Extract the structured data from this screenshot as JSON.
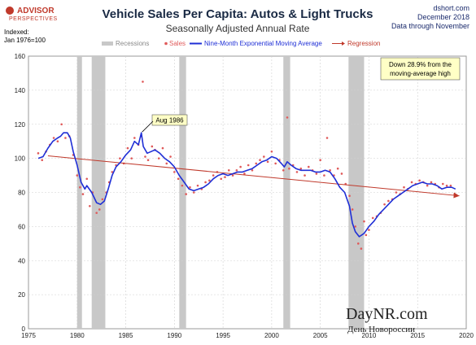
{
  "header": {
    "logo_line1": "ADVISOR",
    "logo_line2": "PERSPECTIVES",
    "source": "dshort.com",
    "date": "December 2018",
    "note": "Data through November",
    "indexed_line1": "Indexed:",
    "indexed_line2": "Jan 1976=100"
  },
  "watermark": {
    "main": "DayNR.com",
    "sub": "День Новороссии"
  },
  "colors": {
    "sales": "#e05a5a",
    "ma": "#1f2fd6",
    "regression": "#c0392b",
    "recession": "#c8c8c8",
    "grid": "#d0d0d0",
    "annotation_bg": "#ffffc6"
  },
  "chart_data": {
    "type": "line",
    "title": "Vehicle Sales Per Capita: Autos & Light Trucks",
    "subtitle": "Seasonally Adjusted Annual Rate",
    "xlim": [
      1975,
      2020
    ],
    "ylim": [
      0,
      160
    ],
    "xticks": [
      1975,
      1980,
      1985,
      1990,
      1995,
      2000,
      2005,
      2010,
      2015,
      2020
    ],
    "yticks": [
      0,
      20,
      40,
      60,
      80,
      100,
      120,
      140,
      160
    ],
    "grid": true,
    "legend_position": "top",
    "legend": [
      {
        "label": "Recessions",
        "kind": "recession"
      },
      {
        "label": "Sales",
        "kind": "sales"
      },
      {
        "label": "Nine-Month Exponential Moving Average",
        "kind": "ma"
      },
      {
        "label": "Regression",
        "kind": "regression"
      }
    ],
    "recessions": [
      [
        1980.0,
        1980.5
      ],
      [
        1981.5,
        1982.9
      ],
      [
        1990.5,
        1991.2
      ],
      [
        2001.2,
        2001.9
      ],
      [
        2007.9,
        2009.5
      ]
    ],
    "moving_average": {
      "x": [
        1976.0,
        1976.5,
        1977.0,
        1977.5,
        1978.0,
        1978.3,
        1978.6,
        1979.0,
        1979.3,
        1979.6,
        1980.0,
        1980.4,
        1980.8,
        1981.0,
        1981.5,
        1982.0,
        1982.4,
        1982.8,
        1983.2,
        1983.6,
        1984.0,
        1984.5,
        1985.0,
        1985.5,
        1985.9,
        1986.3,
        1986.6,
        1986.8,
        1987.2,
        1987.6,
        1988.0,
        1988.5,
        1989.0,
        1989.5,
        1990.0,
        1990.5,
        1991.0,
        1991.5,
        1992.0,
        1992.5,
        1993.0,
        1993.5,
        1994.0,
        1994.5,
        1995.0,
        1995.5,
        1996.0,
        1996.5,
        1997.0,
        1997.5,
        1998.0,
        1998.5,
        1999.0,
        1999.5,
        2000.0,
        2000.5,
        2001.0,
        2001.3,
        2001.6,
        2002.0,
        2002.5,
        2003.0,
        2003.5,
        2004.0,
        2004.5,
        2005.0,
        2005.5,
        2006.0,
        2006.5,
        2007.0,
        2007.5,
        2008.0,
        2008.3,
        2008.6,
        2009.0,
        2009.5,
        2010.0,
        2010.5,
        2011.0,
        2011.5,
        2012.0,
        2012.5,
        2013.0,
        2013.5,
        2014.0,
        2014.5,
        2015.0,
        2015.5,
        2016.0,
        2016.5,
        2017.0,
        2017.5,
        2018.0,
        2018.5,
        2018.9
      ],
      "y": [
        100,
        101,
        106,
        110,
        112,
        113,
        115,
        115,
        112,
        104,
        96,
        86,
        82,
        84,
        80,
        74,
        73,
        75,
        82,
        90,
        95,
        98,
        102,
        105,
        110,
        108,
        115,
        107,
        103,
        104,
        105,
        103,
        100,
        98,
        95,
        90,
        86,
        82,
        81,
        82,
        83,
        85,
        88,
        90,
        91,
        90,
        91,
        92,
        92,
        93,
        94,
        96,
        98,
        99,
        101,
        100,
        97,
        95,
        98,
        96,
        94,
        93,
        93,
        93,
        92,
        92,
        93,
        92,
        88,
        83,
        80,
        72,
        62,
        57,
        54,
        56,
        60,
        63,
        67,
        70,
        73,
        76,
        78,
        80,
        82,
        84,
        85,
        86,
        85,
        85,
        84,
        82,
        83,
        83,
        82
      ]
    },
    "sales": {
      "x": [
        1976.0,
        1976.4,
        1976.8,
        1977.2,
        1977.6,
        1978.0,
        1978.4,
        1978.8,
        1979.2,
        1979.6,
        1980.0,
        1980.3,
        1980.6,
        1981.0,
        1981.3,
        1981.6,
        1982.0,
        1982.3,
        1982.6,
        1983.0,
        1983.3,
        1983.6,
        1984.0,
        1984.4,
        1984.8,
        1985.2,
        1985.6,
        1985.9,
        1986.3,
        1986.6,
        1986.75,
        1987.0,
        1987.3,
        1987.7,
        1988.0,
        1988.4,
        1988.8,
        1989.2,
        1989.6,
        1990.0,
        1990.4,
        1990.8,
        1991.2,
        1991.6,
        1992.0,
        1992.4,
        1992.8,
        1993.2,
        1993.6,
        1994.0,
        1994.4,
        1994.8,
        1995.2,
        1995.6,
        1996.0,
        1996.4,
        1996.8,
        1997.2,
        1997.6,
        1998.0,
        1998.4,
        1998.8,
        1999.2,
        1999.6,
        2000.0,
        2000.4,
        2000.8,
        2001.2,
        2001.6,
        2001.8,
        2002.2,
        2002.6,
        2003.0,
        2003.4,
        2003.8,
        2004.2,
        2004.6,
        2005.0,
        2005.4,
        2005.7,
        2006.0,
        2006.4,
        2006.8,
        2007.2,
        2007.6,
        2008.0,
        2008.3,
        2008.6,
        2008.9,
        2009.2,
        2009.5,
        2009.7,
        2010.0,
        2010.4,
        2010.8,
        2011.2,
        2011.6,
        2012.0,
        2012.4,
        2012.8,
        2013.2,
        2013.6,
        2014.0,
        2014.4,
        2014.8,
        2015.2,
        2015.6,
        2016.0,
        2016.4,
        2016.8,
        2017.2,
        2017.6,
        2018.0,
        2018.4,
        2018.8
      ],
      "y": [
        103,
        99,
        104,
        108,
        112,
        110,
        120,
        112,
        113,
        102,
        90,
        83,
        79,
        88,
        72,
        80,
        68,
        70,
        76,
        80,
        86,
        92,
        96,
        100,
        97,
        106,
        100,
        112,
        108,
        113,
        145,
        101,
        99,
        107,
        105,
        100,
        106,
        97,
        101,
        92,
        88,
        84,
        79,
        83,
        80,
        84,
        82,
        86,
        87,
        90,
        92,
        88,
        89,
        93,
        90,
        93,
        95,
        91,
        96,
        93,
        97,
        99,
        101,
        98,
        104,
        97,
        99,
        93,
        124,
        94,
        96,
        92,
        94,
        90,
        95,
        93,
        91,
        99,
        90,
        112,
        93,
        90,
        94,
        91,
        85,
        78,
        70,
        60,
        50,
        47,
        63,
        55,
        58,
        65,
        66,
        68,
        73,
        75,
        76,
        80,
        79,
        83,
        82,
        86,
        85,
        87,
        86,
        84,
        86,
        85,
        83,
        85,
        84,
        84,
        79
      ]
    },
    "regression": {
      "x": [
        1977.0,
        2019.3
      ],
      "y": [
        101.5,
        78
      ]
    },
    "annotations": [
      {
        "text": "Aug 1986",
        "x": 1986.6,
        "y": 115
      },
      {
        "text_line1": "Down 28.9% from the",
        "text_line2": "moving-average high"
      }
    ]
  }
}
